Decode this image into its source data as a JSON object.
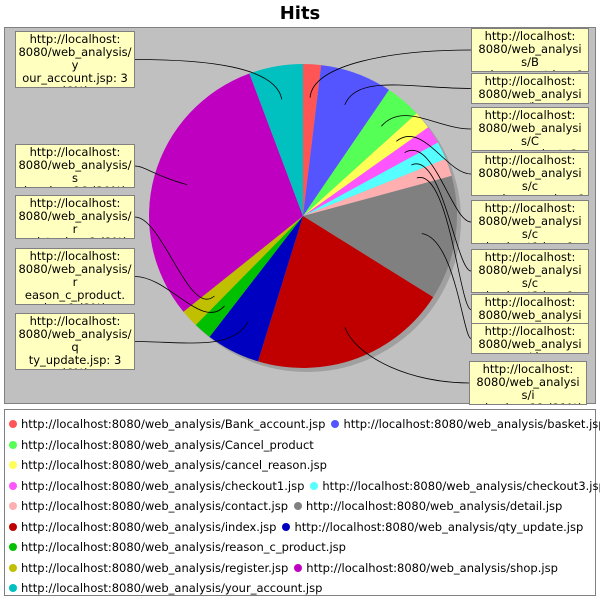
{
  "chart_data": {
    "type": "pie",
    "title": "Hits",
    "slices": [
      {
        "name": "http://localhost:8080/web_analysis/Bank_account.jsp",
        "value": 1,
        "percent": 2,
        "color": "#ff5555",
        "label": "http://localhost:8080/web_analysis/Bank_account.jsp: 1"
      },
      {
        "name": "http://localhost:8080/web_analysis/basket.jsp",
        "value": 4,
        "percent": 8,
        "color": "#5555ff",
        "label": "http://localhost:8080/web_analysis/b"
      },
      {
        "name": "http://localhost:8080/web_analysis/Cancel_product",
        "value": 2,
        "percent": 4,
        "color": "#55ff55",
        "label": "http://localhost:8080/web_analysis/Cancel_product: 2"
      },
      {
        "name": "http://localhost:8080/web_analysis/cancel_reason.jsp",
        "value": 1,
        "percent": 2,
        "color": "#ffff55",
        "label": "http://localhost:8080/web_analysis/cancel_reason.jsp: 1"
      },
      {
        "name": "http://localhost:8080/web_analysis/checkout1.jsp",
        "value": 1,
        "percent": 2,
        "color": "#ff55ff",
        "label": "http://localhost:8080/web_analysis/checkout1.jsp: 1"
      },
      {
        "name": "http://localhost:8080/web_analysis/checkout3.jsp",
        "value": 1,
        "percent": 2,
        "color": "#55ffff",
        "label": "http://localhost:8080/web_analysis/checkout3.jsp: 1"
      },
      {
        "name": "http://localhost:8080/web_analysis/contact.jsp",
        "value": 1,
        "percent": 2,
        "color": "#ffafaf",
        "label": "http://localhost:8080/web_analysis/c"
      },
      {
        "name": "http://localhost:8080/web_analysis/detail.jsp",
        "value": 7,
        "percent": 13,
        "color": "#808080",
        "label": "http://localhost:8080/web_analysis/d"
      },
      {
        "name": "http://localhost:8080/web_analysis/index.jsp",
        "value": 11,
        "percent": 21,
        "color": "#c00000",
        "label": "http://localhost:8080/web_analysis/index.jsp: 11 (21%)"
      },
      {
        "name": "http://localhost:8080/web_analysis/qty_update.jsp",
        "value": 3,
        "percent": 6,
        "color": "#0000c0",
        "label": "http://localhost:8080/web_analysis/qty_update.jsp: 3 (6%)"
      },
      {
        "name": "http://localhost:8080/web_analysis/reason_c_product.jsp",
        "value": 1,
        "percent": 2,
        "color": "#00c000",
        "label": "http://localhost:8080/web_analysis/reason_c_product.jsp: 1 (2%)"
      },
      {
        "name": "http://localhost:8080/web_analysis/register.jsp",
        "value": 1,
        "percent": 2,
        "color": "#c0c000",
        "label": "http://localhost:8080/web_analysis/register.jsp: 1 (2%)"
      },
      {
        "name": "http://localhost:8080/web_analysis/shop.jsp",
        "value": 16,
        "percent": 30,
        "color": "#c000c0",
        "label": "http://localhost:8080/web_analysis/shop.jsp: 16 (30%)"
      },
      {
        "name": "http://localhost:8080/web_analysis/your_account.jsp",
        "value": 3,
        "percent": 6,
        "color": "#00c0c0",
        "label": "http://localhost:8080/web_analysis/your_account.jsp: 3 (6%)"
      }
    ],
    "legend_position": "bottom",
    "legend_rows": [
      [
        0,
        1
      ],
      [
        2
      ],
      [
        3
      ],
      [
        4,
        5
      ],
      [
        6,
        7
      ],
      [
        8,
        9
      ],
      [
        10
      ],
      [
        11,
        12
      ],
      [
        13
      ]
    ]
  }
}
